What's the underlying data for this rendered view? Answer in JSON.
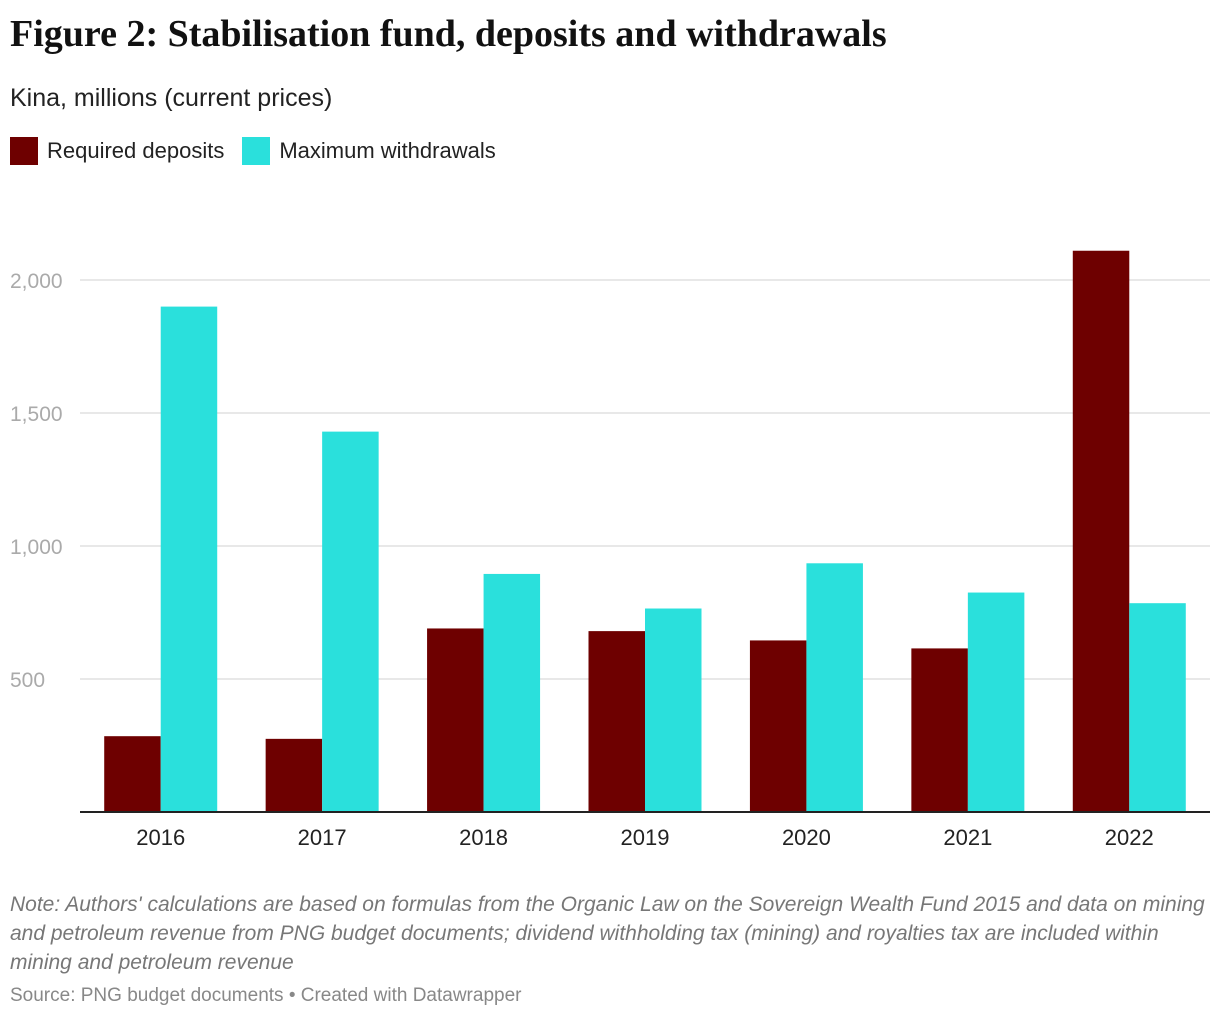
{
  "title": "Figure 2: Stabilisation fund, deposits and withdrawals",
  "subtitle": "Kina, millions (current prices)",
  "legend": {
    "series_a": "Required deposits",
    "series_b": "Maximum withdrawals"
  },
  "colors": {
    "deposits": "#6e0000",
    "withdrawals": "#2ae0dc",
    "gridline": "#e0e0e0",
    "axis": "#222222",
    "ytick": "#aaaaaa"
  },
  "chart_data": {
    "type": "bar",
    "categories": [
      "2016",
      "2017",
      "2018",
      "2019",
      "2020",
      "2021",
      "2022"
    ],
    "series": [
      {
        "name": "Required deposits",
        "values": [
          285,
          275,
          690,
          680,
          645,
          615,
          2110
        ]
      },
      {
        "name": "Maximum withdrawals",
        "values": [
          1900,
          1430,
          895,
          765,
          935,
          825,
          785
        ]
      }
    ],
    "yticks": [
      "500",
      "1,000",
      "1,500",
      "2,000"
    ],
    "ytick_values": [
      500,
      1000,
      1500,
      2000
    ],
    "ylim": [
      0,
      2150
    ],
    "grid": true
  },
  "note": "Note: Authors' calculations are based on formulas from the Organic Law on the Sovereign Wealth Fund 2015 and data on mining and petroleum revenue from PNG budget documents; dividend withholding tax (mining) and royalties tax are included within mining and petroleum revenue",
  "source": "Source: PNG budget documents • Created with Datawrapper"
}
